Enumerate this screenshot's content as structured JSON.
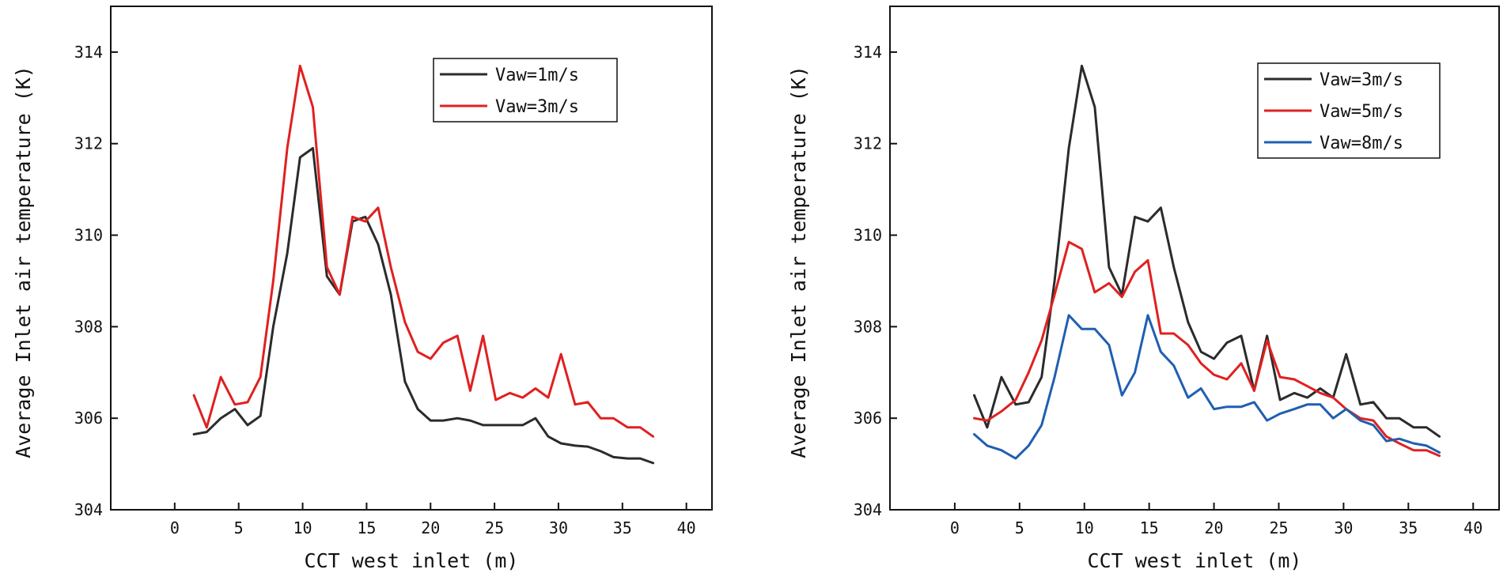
{
  "chart_data": [
    {
      "type": "line",
      "title": "",
      "xlabel": "CCT west inlet (m)",
      "ylabel": "Average Inlet air temperature (K)",
      "xlim": [
        -5,
        42
      ],
      "ylim": [
        304,
        315
      ],
      "xticks": [
        0,
        5,
        10,
        15,
        20,
        25,
        30,
        35,
        40
      ],
      "yticks": [
        304,
        306,
        308,
        310,
        312,
        314
      ],
      "legend_position": "top-right",
      "series": [
        {
          "name": "Vaw=1m/s",
          "color": "#2b2b2b",
          "x": [
            1.5,
            2.5,
            3.6,
            4.7,
            5.7,
            6.7,
            7.7,
            8.8,
            9.8,
            10.8,
            11.9,
            12.9,
            13.9,
            14.9,
            15.9,
            16.9,
            18.0,
            19.0,
            20.0,
            21.0,
            22.1,
            23.1,
            24.1,
            25.1,
            26.2,
            27.2,
            28.2,
            29.2,
            30.2,
            31.3,
            32.3,
            33.3,
            34.3,
            35.4,
            36.4,
            37.4
          ],
          "y": [
            305.65,
            305.7,
            306.0,
            306.2,
            305.85,
            306.05,
            308.0,
            309.6,
            311.7,
            311.9,
            309.1,
            308.7,
            310.3,
            310.4,
            309.8,
            308.7,
            306.8,
            306.2,
            305.95,
            305.95,
            306.0,
            305.95,
            305.85,
            305.85,
            305.85,
            305.85,
            306.0,
            305.6,
            305.45,
            305.4,
            305.38,
            305.28,
            305.15,
            305.12,
            305.12,
            305.02
          ]
        },
        {
          "name": "Vaw=3m/s",
          "color": "#e02020",
          "x": [
            1.5,
            2.5,
            3.6,
            4.7,
            5.7,
            6.7,
            7.7,
            8.8,
            9.8,
            10.8,
            11.9,
            12.9,
            13.9,
            14.9,
            15.9,
            16.9,
            18.0,
            19.0,
            20.0,
            21.0,
            22.1,
            23.1,
            24.1,
            25.1,
            26.2,
            27.2,
            28.2,
            29.2,
            30.2,
            31.3,
            32.3,
            33.3,
            34.3,
            35.4,
            36.4,
            37.4
          ],
          "y": [
            306.5,
            305.8,
            306.9,
            306.3,
            306.35,
            306.9,
            309.0,
            311.9,
            313.7,
            312.8,
            309.3,
            308.7,
            310.4,
            310.3,
            310.6,
            309.3,
            308.1,
            307.45,
            307.3,
            307.65,
            307.8,
            306.6,
            307.8,
            306.4,
            306.55,
            306.45,
            306.65,
            306.45,
            307.4,
            306.3,
            306.35,
            306.0,
            306.0,
            305.8,
            305.8,
            305.6
          ]
        }
      ]
    },
    {
      "type": "line",
      "title": "",
      "xlabel": "CCT west inlet (m)",
      "ylabel": "Average Inlet air temperature (K)",
      "xlim": [
        -5,
        42
      ],
      "ylim": [
        304,
        315
      ],
      "xticks": [
        0,
        5,
        10,
        15,
        20,
        25,
        30,
        35,
        40
      ],
      "yticks": [
        304,
        306,
        308,
        310,
        312,
        314
      ],
      "legend_position": "top-right",
      "series": [
        {
          "name": "Vaw=3m/s",
          "color": "#2b2b2b",
          "x": [
            1.5,
            2.5,
            3.6,
            4.7,
            5.7,
            6.7,
            7.7,
            8.8,
            9.8,
            10.8,
            11.9,
            12.9,
            13.9,
            14.9,
            15.9,
            16.9,
            18.0,
            19.0,
            20.0,
            21.0,
            22.1,
            23.1,
            24.1,
            25.1,
            26.2,
            27.2,
            28.2,
            29.2,
            30.2,
            31.3,
            32.3,
            33.3,
            34.3,
            35.4,
            36.4,
            37.4
          ],
          "y": [
            306.5,
            305.8,
            306.9,
            306.3,
            306.35,
            306.9,
            309.0,
            311.9,
            313.7,
            312.8,
            309.3,
            308.7,
            310.4,
            310.3,
            310.6,
            309.3,
            308.1,
            307.45,
            307.3,
            307.65,
            307.8,
            306.6,
            307.8,
            306.4,
            306.55,
            306.45,
            306.65,
            306.45,
            307.4,
            306.3,
            306.35,
            306.0,
            306.0,
            305.8,
            305.8,
            305.6
          ]
        },
        {
          "name": "Vaw=5m/s",
          "color": "#e02020",
          "x": [
            1.5,
            2.5,
            3.6,
            4.7,
            5.7,
            6.7,
            7.7,
            8.8,
            9.8,
            10.8,
            11.9,
            12.9,
            13.9,
            14.9,
            15.9,
            16.9,
            18.0,
            19.0,
            20.0,
            21.0,
            22.1,
            23.1,
            24.1,
            25.1,
            26.2,
            27.2,
            28.2,
            29.2,
            30.2,
            31.3,
            32.3,
            33.3,
            34.3,
            35.4,
            36.4,
            37.4
          ],
          "y": [
            306.0,
            305.95,
            306.15,
            306.4,
            307.0,
            307.7,
            308.7,
            309.85,
            309.7,
            308.75,
            308.95,
            308.65,
            309.2,
            309.45,
            307.85,
            307.85,
            307.6,
            307.2,
            306.95,
            306.85,
            307.2,
            306.6,
            307.7,
            306.9,
            306.85,
            306.7,
            306.55,
            306.45,
            306.2,
            306.0,
            305.95,
            305.6,
            305.45,
            305.3,
            305.3,
            305.18
          ]
        },
        {
          "name": "Vaw=8m/s",
          "color": "#1f5fb0",
          "x": [
            1.5,
            2.5,
            3.6,
            4.7,
            5.7,
            6.7,
            7.7,
            8.8,
            9.8,
            10.8,
            11.9,
            12.9,
            13.9,
            14.9,
            15.9,
            16.9,
            18.0,
            19.0,
            20.0,
            21.0,
            22.1,
            23.1,
            24.1,
            25.1,
            26.2,
            27.2,
            28.2,
            29.2,
            30.2,
            31.3,
            32.3,
            33.3,
            34.3,
            35.4,
            36.4,
            37.4
          ],
          "y": [
            305.65,
            305.4,
            305.3,
            305.12,
            305.4,
            305.85,
            306.9,
            308.25,
            307.95,
            307.95,
            307.6,
            306.5,
            307.0,
            308.25,
            307.45,
            307.15,
            306.45,
            306.65,
            306.2,
            306.25,
            306.25,
            306.35,
            305.95,
            306.1,
            306.2,
            306.3,
            306.3,
            306.0,
            306.2,
            305.95,
            305.85,
            305.5,
            305.55,
            305.45,
            305.4,
            305.25
          ]
        }
      ]
    }
  ]
}
